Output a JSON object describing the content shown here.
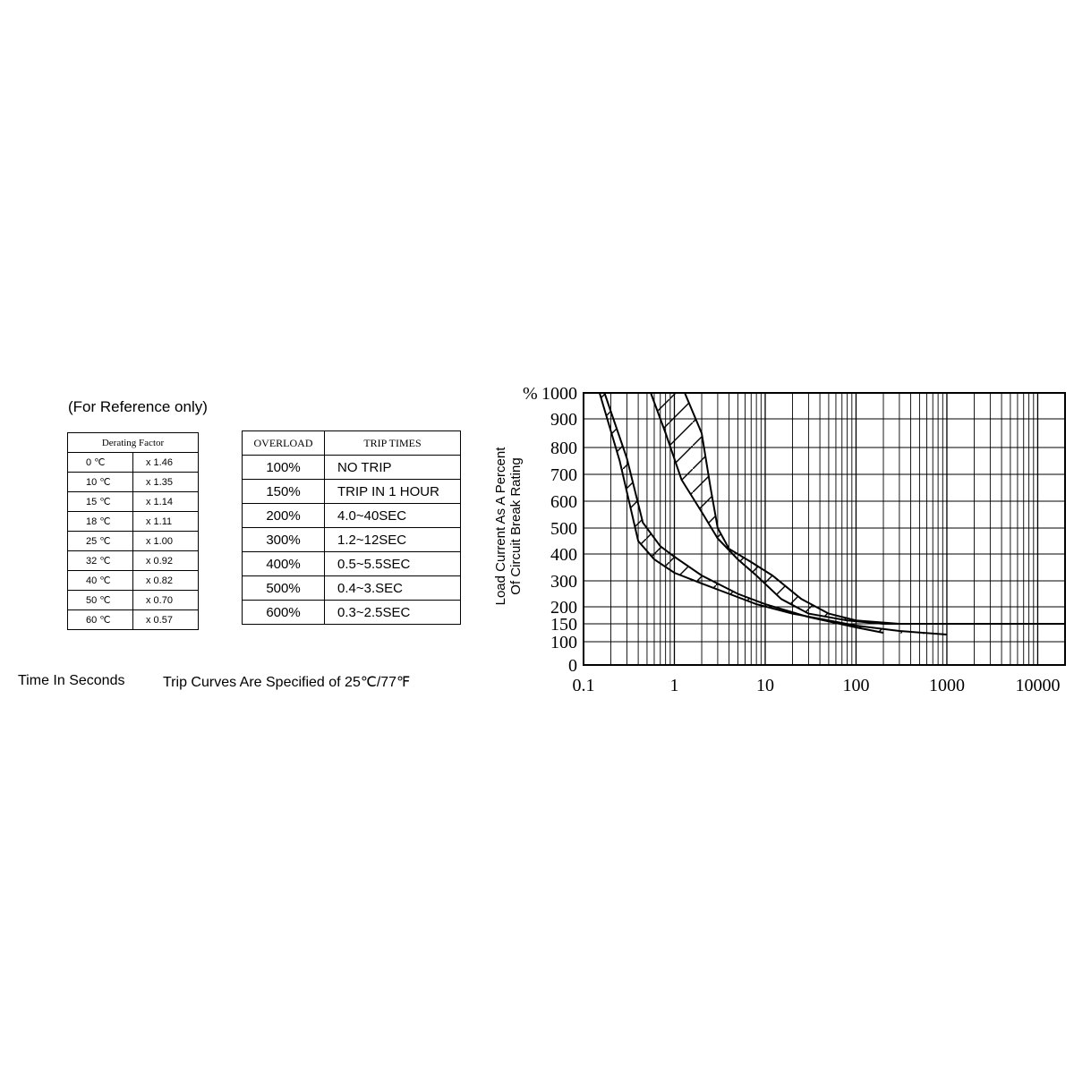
{
  "note": "(For Reference only)",
  "footer": {
    "time_label": "Time In Seconds",
    "spec_note": "Trip Curves Are Specified of 25℃/77℉"
  },
  "derating": {
    "header": "Derating Factor",
    "rows": [
      {
        "temp": "0 ℃",
        "factor": "x 1.46"
      },
      {
        "temp": "10 ℃",
        "factor": "x 1.35"
      },
      {
        "temp": "15 ℃",
        "factor": "x 1.14"
      },
      {
        "temp": "18 ℃",
        "factor": "x 1.11"
      },
      {
        "temp": "25 ℃",
        "factor": "x 1.00"
      },
      {
        "temp": "32 ℃",
        "factor": "x 0.92"
      },
      {
        "temp": "40 ℃",
        "factor": "x 0.82"
      },
      {
        "temp": "50 ℃",
        "factor": "x 0.70"
      },
      {
        "temp": "60 ℃",
        "factor": "x 0.57"
      }
    ]
  },
  "overload": {
    "col1": "OVERLOAD",
    "col2": "TRIP TIMES",
    "rows": [
      {
        "overload": "100%",
        "trip": "NO TRIP"
      },
      {
        "overload": "150%",
        "trip": "TRIP IN 1 HOUR"
      },
      {
        "overload": "200%",
        "trip": "4.0~40SEC"
      },
      {
        "overload": "300%",
        "trip": "1.2~12SEC"
      },
      {
        "overload": "400%",
        "trip": "0.5~5.5SEC"
      },
      {
        "overload": "500%",
        "trip": "0.4~3.SEC"
      },
      {
        "overload": "600%",
        "trip": "0.3~2.5SEC"
      }
    ]
  },
  "chart_data": {
    "type": "area",
    "title": "",
    "ylabel": "Load Current As A Percent Of Circuit Break Rating",
    "ylabel_lines": [
      "Load Current As A Percent",
      "Of Circuit Break Rating"
    ],
    "y_unit": "%",
    "xlabel": "",
    "x_scale": "log",
    "xlim": [
      0.1,
      20000
    ],
    "ylim": [
      0,
      1000
    ],
    "x_ticks": [
      0.1,
      1,
      10,
      100,
      1000,
      10000
    ],
    "x_tick_labels": [
      "0.1",
      "1",
      "10",
      "100",
      "1000",
      "10000"
    ],
    "y_ticks": [
      0,
      100,
      150,
      200,
      300,
      400,
      500,
      600,
      700,
      800,
      900,
      1000
    ],
    "y_tick_labels": [
      "0",
      "100",
      "150",
      "200",
      "300",
      "400",
      "500",
      "600",
      "700",
      "800",
      "900",
      "1000"
    ],
    "grid": true,
    "series": [
      {
        "points": [
          [
            0.15,
            1000
          ],
          [
            0.25,
            750
          ],
          [
            0.4,
            450
          ],
          [
            0.6,
            380
          ],
          [
            1,
            330
          ],
          [
            2,
            290
          ],
          [
            4,
            250
          ],
          [
            8,
            210
          ],
          [
            20,
            180
          ],
          [
            50,
            160
          ],
          [
            100,
            145
          ],
          [
            300,
            130
          ],
          [
            1000,
            120
          ]
        ]
      },
      {
        "points": [
          [
            0.17,
            1000
          ],
          [
            0.3,
            760
          ],
          [
            0.45,
            520
          ],
          [
            0.7,
            430
          ],
          [
            1,
            390
          ],
          [
            2,
            320
          ],
          [
            5,
            250
          ],
          [
            10,
            210
          ],
          [
            30,
            170
          ],
          [
            100,
            140
          ],
          [
            200,
            125
          ]
        ]
      },
      {
        "points": [
          [
            0.55,
            1000
          ],
          [
            0.8,
            850
          ],
          [
            1.2,
            680
          ],
          [
            2,
            560
          ],
          [
            3,
            460
          ],
          [
            5,
            380
          ],
          [
            8,
            320
          ],
          [
            15,
            230
          ],
          [
            30,
            180
          ],
          [
            80,
            160
          ],
          [
            200,
            150
          ],
          [
            20000,
            150
          ]
        ]
      },
      {
        "points": [
          [
            1.3,
            1000
          ],
          [
            2,
            850
          ],
          [
            2.5,
            650
          ],
          [
            3,
            500
          ],
          [
            4,
            420
          ],
          [
            7,
            370
          ],
          [
            12,
            320
          ],
          [
            25,
            230
          ],
          [
            50,
            180
          ],
          [
            100,
            160
          ],
          [
            300,
            150
          ]
        ]
      }
    ]
  }
}
